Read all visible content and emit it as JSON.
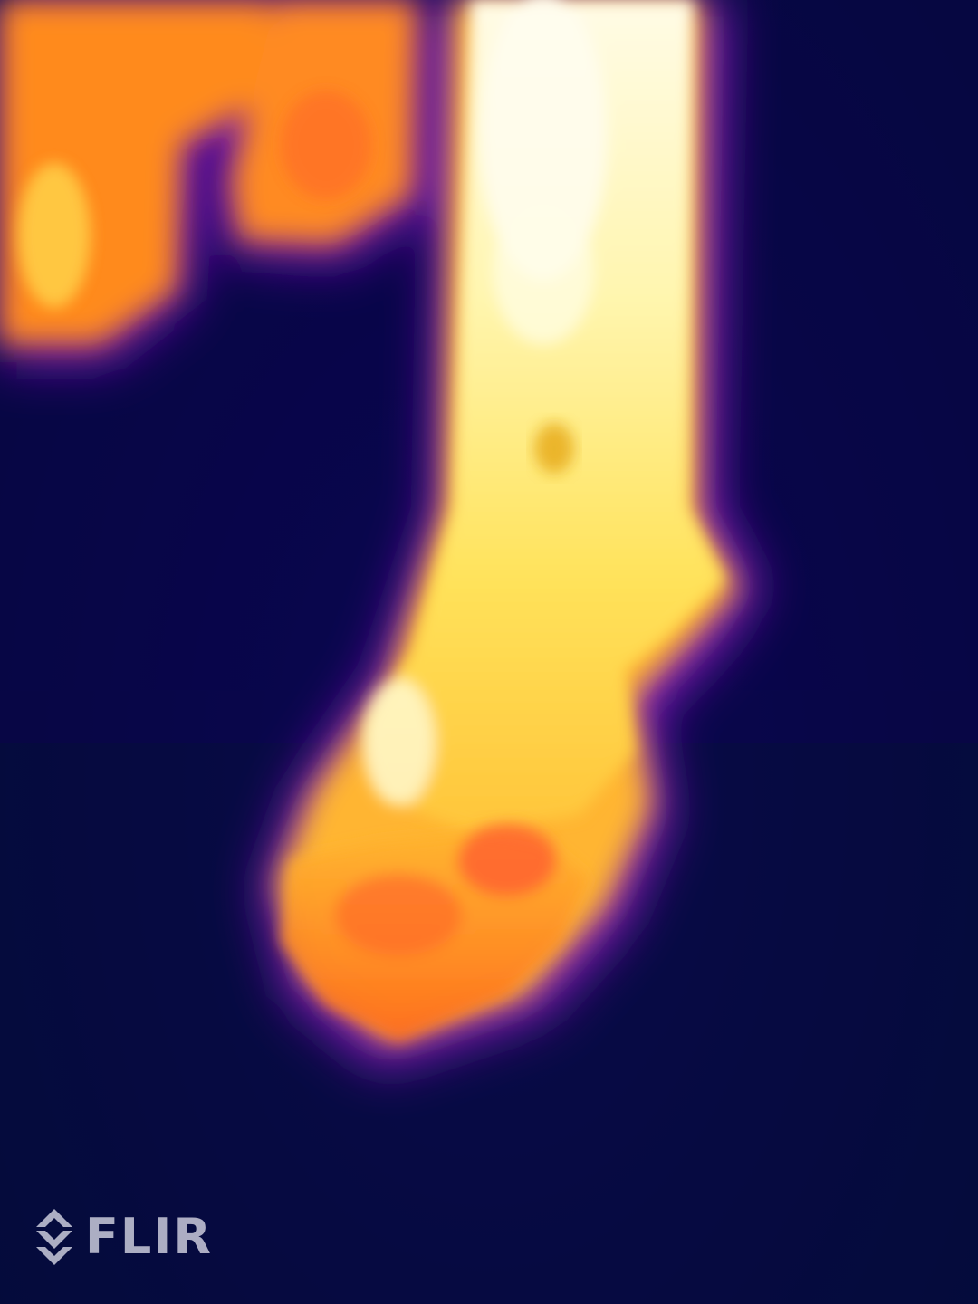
{
  "watermark": {
    "text": "FLIR",
    "icon": "flir-diamond-icon"
  },
  "palette": {
    "background": "#07053a",
    "cold": "#1a0a6e",
    "mid": "#a21cb0",
    "warm": "#ff7a1a",
    "hot": "#ffd84a",
    "hottest": "#fffbe0"
  }
}
